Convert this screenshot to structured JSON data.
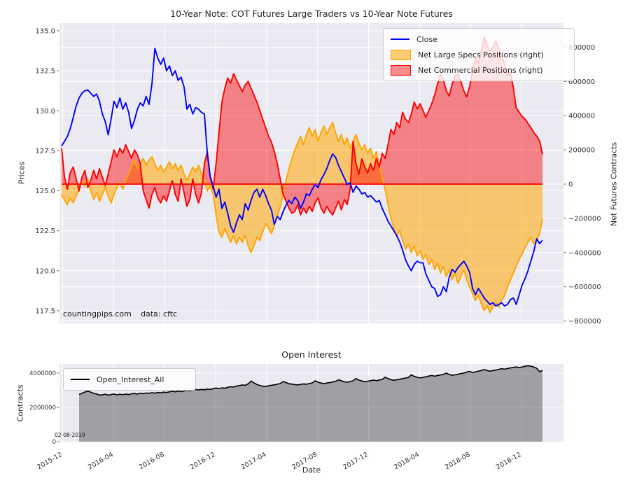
{
  "figure": {
    "background": "#ffffff",
    "plot_background": "#eaeaf2",
    "grid_color": "#ffffff",
    "tick_text_color": "#333333",
    "accent_blue": "#0000ff",
    "accent_orange": "#ffa500",
    "accent_red": "#ff0000",
    "accent_black": "#000000"
  },
  "main_chart": {
    "title": "10-Year Note: COT Futures Large Traders vs 10-Year Note Futures",
    "ylabel_left": "Prices",
    "ylabel_right": "Net Futures Contracts",
    "watermark": "countingpips.com",
    "source_note": "data: cftc",
    "legend": [
      {
        "label": "Close",
        "swatch": "line",
        "color": "#0000ff"
      },
      {
        "label": "Net Large Specs Positions (right)",
        "swatch": "patch",
        "color": "rgba(255,165,0,0.55)",
        "edge": "#ffa500"
      },
      {
        "label": "Net Commercial Positions (right)",
        "swatch": "patch",
        "color": "rgba(255,0,0,0.45)",
        "edge": "#ff0000"
      }
    ],
    "yticks_left": [
      "135.0",
      "132.5",
      "130.0",
      "127.5",
      "125.0",
      "122.5",
      "120.0",
      "117.5"
    ],
    "yticks_right": [
      "800000",
      "600000",
      "400000",
      "200000",
      "0",
      "−200000",
      "−400000",
      "−600000",
      "−800000"
    ]
  },
  "oi_chart": {
    "title": "Open Interest",
    "ylabel": "Contracts",
    "xlabel": "Date",
    "date_note": "02-08-2019",
    "legend": [
      {
        "label": "Open_Interest_All",
        "swatch": "line",
        "color": "#000000"
      }
    ],
    "yticks": [
      "4000000",
      "2000000",
      "0"
    ],
    "xticks": [
      "2015-12",
      "2016-04",
      "2016-08",
      "2016-12",
      "2017-04",
      "2017-08",
      "2017-12",
      "2018-04",
      "2018-08",
      "2018-12"
    ]
  },
  "chart_data": [
    {
      "type": "line",
      "title": "10-Year Note: COT Futures Large Traders vs 10-Year Note Futures",
      "x_unit": "weekly observations, 2015-12 through 2019-02 (last point 02-08-2019)",
      "xlabel": "Date",
      "ylabel_left": "Prices",
      "ylabel_right": "Net Futures Contracts",
      "ylim_left": [
        117.5,
        135.0
      ],
      "ylim_right": [
        -800000,
        800000
      ],
      "grid": true,
      "legend_position": "upper right",
      "series": [
        {
          "name": "Close",
          "axis": "left",
          "style": "line",
          "color": "#0000ff",
          "units": "price",
          "values": [
            127.8,
            128.1,
            128.4,
            128.9,
            129.6,
            130.3,
            130.8,
            131.1,
            131.25,
            131.3,
            131.1,
            130.9,
            131.05,
            130.6,
            129.8,
            129.3,
            128.5,
            129.5,
            130.6,
            130.2,
            130.8,
            130.1,
            130.5,
            129.9,
            128.9,
            129.4,
            130.1,
            130.5,
            130.3,
            130.9,
            130.4,
            131.7,
            133.9,
            133.3,
            132.9,
            133.3,
            132.5,
            132.8,
            132.2,
            132.5,
            131.9,
            132.1,
            131.5,
            130.1,
            130.4,
            129.8,
            130.2,
            130.1,
            129.9,
            129.8,
            127.3,
            125.9,
            125.3,
            124.6,
            125.1,
            123.9,
            124.3,
            123.6,
            122.8,
            122.4,
            123.0,
            123.5,
            123.2,
            124.2,
            123.8,
            124.4,
            124.9,
            125.1,
            124.6,
            125.1,
            124.7,
            124.2,
            123.8,
            122.9,
            123.4,
            123.2,
            123.7,
            124.1,
            124.4,
            124.2,
            124.6,
            124.4,
            123.9,
            124.3,
            124.8,
            124.7,
            125.1,
            125.4,
            125.2,
            125.7,
            126.0,
            126.4,
            126.9,
            127.3,
            127.1,
            126.6,
            126.2,
            125.8,
            125.4,
            125.5,
            124.9,
            125.3,
            125.1,
            124.8,
            124.9,
            124.6,
            124.7,
            124.5,
            124.3,
            124.4,
            123.9,
            123.5,
            123.1,
            122.8,
            122.5,
            122.2,
            121.8,
            121.3,
            120.7,
            120.3,
            120.0,
            120.4,
            120.6,
            120.5,
            120.5,
            119.8,
            119.4,
            119.0,
            118.9,
            118.4,
            118.5,
            119.0,
            118.7,
            119.6,
            120.1,
            119.9,
            120.2,
            120.4,
            120.6,
            120.3,
            119.9,
            118.9,
            118.5,
            118.9,
            118.6,
            118.3,
            118.1,
            117.9,
            118.0,
            117.8,
            117.9,
            118.0,
            117.8,
            117.9,
            118.2,
            118.3,
            117.9,
            118.5,
            119.1,
            119.5,
            120.0,
            120.6,
            121.2,
            122.0,
            121.7,
            121.9
          ]
        },
        {
          "name": "Net Large Specs Positions",
          "axis": "right",
          "style": "area",
          "color": "#ffa500",
          "units": "thousand contracts",
          "values": [
            -60,
            -95,
            -120,
            -80,
            -110,
            -70,
            -30,
            20,
            -15,
            30,
            -40,
            -90,
            -50,
            -100,
            -60,
            -20,
            -70,
            -110,
            -60,
            -20,
            10,
            -30,
            20,
            60,
            100,
            140,
            90,
            120,
            150,
            110,
            140,
            160,
            120,
            80,
            110,
            70,
            100,
            130,
            90,
            120,
            80,
            110,
            60,
            20,
            60,
            100,
            70,
            110,
            60,
            20,
            -40,
            -10,
            -60,
            -180,
            -280,
            -310,
            -260,
            -300,
            -340,
            -300,
            -350,
            -310,
            -340,
            -300,
            -360,
            -400,
            -360,
            -310,
            -330,
            -280,
            -230,
            -260,
            -290,
            -240,
            -190,
            -130,
            -60,
            20,
            90,
            150,
            200,
            240,
            280,
            230,
            290,
            330,
            280,
            320,
            250,
            300,
            340,
            290,
            330,
            360,
            300,
            250,
            290,
            230,
            270,
            210,
            250,
            290,
            240,
            200,
            230,
            180,
            210,
            150,
            190,
            110,
            40,
            -30,
            -120,
            -200,
            -260,
            -310,
            -270,
            -330,
            -380,
            -350,
            -400,
            -360,
            -420,
            -390,
            -440,
            -410,
            -470,
            -440,
            -500,
            -460,
            -520,
            -480,
            -540,
            -500,
            -560,
            -520,
            -580,
            -540,
            -500,
            -560,
            -600,
            -640,
            -680,
            -650,
            -700,
            -740,
            -710,
            -750,
            -720,
            -690,
            -720,
            -680,
            -650,
            -600,
            -560,
            -520,
            -480,
            -440,
            -410,
            -370,
            -340,
            -310,
            -350,
            -330,
            -290,
            -200
          ]
        },
        {
          "name": "Net Commercial Positions",
          "axis": "right",
          "style": "area",
          "color": "#ff0000",
          "units": "thousand contracts",
          "values": [
            210,
            40,
            -30,
            70,
            100,
            30,
            -40,
            40,
            80,
            -20,
            20,
            80,
            30,
            90,
            40,
            -10,
            60,
            130,
            200,
            160,
            210,
            180,
            230,
            190,
            150,
            200,
            170,
            120,
            -40,
            -90,
            -140,
            -60,
            -20,
            -80,
            -110,
            -70,
            -100,
            -40,
            20,
            -60,
            -100,
            30,
            -50,
            -130,
            -90,
            30,
            -60,
            -110,
            -50,
            120,
            190,
            40,
            -30,
            120,
            300,
            480,
            560,
            620,
            590,
            645,
            610,
            575,
            540,
            580,
            600,
            560,
            520,
            480,
            430,
            380,
            330,
            280,
            245,
            190,
            120,
            30,
            -60,
            -100,
            -140,
            -170,
            -160,
            -120,
            -180,
            -140,
            -170,
            -130,
            -160,
            -110,
            -80,
            -140,
            -170,
            -130,
            -160,
            -180,
            -140,
            -100,
            -150,
            -90,
            -120,
            -30,
            250,
            120,
            57,
            147,
            100,
            65,
            120,
            80,
            150,
            100,
            180,
            150,
            230,
            320,
            290,
            360,
            330,
            420,
            380,
            360,
            410,
            480,
            440,
            470,
            430,
            390,
            430,
            470,
            520,
            585,
            645,
            610,
            545,
            515,
            585,
            630,
            645,
            600,
            545,
            510,
            570,
            660,
            739,
            700,
            780,
            857,
            810,
            776,
            800,
            836,
            790,
            747,
            700,
            632,
            657,
            560,
            445,
            420,
            396,
            380,
            355,
            330,
            302,
            280,
            253,
            175
          ]
        }
      ]
    },
    {
      "type": "area",
      "title": "Open Interest",
      "x_unit": "weekly observations, 2016-01 through 2019-02 (last point 02-08-2019)",
      "xlabel": "Date",
      "ylabel": "Contracts",
      "ylim": [
        0,
        4600000
      ],
      "grid": true,
      "legend_position": "upper left",
      "series": [
        {
          "name": "Open_Interest_All",
          "style": "area-line",
          "color": "#000000",
          "units": "million contracts",
          "values": [
            2.76,
            2.83,
            2.9,
            2.95,
            2.89,
            2.82,
            2.78,
            2.72,
            2.74,
            2.77,
            2.72,
            2.75,
            2.78,
            2.73,
            2.77,
            2.74,
            2.78,
            2.75,
            2.79,
            2.81,
            2.78,
            2.82,
            2.8,
            2.84,
            2.82,
            2.86,
            2.83,
            2.87,
            2.85,
            2.89,
            2.87,
            2.91,
            2.94,
            2.91,
            2.95,
            2.92,
            2.96,
            2.99,
            2.97,
            3.01,
            3.04,
            3.02,
            3.05,
            3.03,
            3.07,
            3.05,
            3.09,
            3.13,
            3.1,
            3.14,
            3.12,
            3.17,
            3.21,
            3.19,
            3.24,
            3.27,
            3.31,
            3.29,
            3.37,
            3.54,
            3.43,
            3.34,
            3.28,
            3.24,
            3.22,
            3.26,
            3.29,
            3.32,
            3.35,
            3.39,
            3.51,
            3.45,
            3.38,
            3.36,
            3.33,
            3.31,
            3.34,
            3.37,
            3.35,
            3.39,
            3.43,
            3.55,
            3.47,
            3.42,
            3.39,
            3.42,
            3.45,
            3.48,
            3.52,
            3.61,
            3.55,
            3.5,
            3.47,
            3.51,
            3.55,
            3.68,
            3.59,
            3.54,
            3.5,
            3.53,
            3.56,
            3.59,
            3.56,
            3.6,
            3.63,
            3.76,
            3.68,
            3.62,
            3.58,
            3.61,
            3.64,
            3.68,
            3.71,
            3.75,
            3.9,
            3.81,
            3.76,
            3.72,
            3.75,
            3.79,
            3.83,
            3.86,
            3.82,
            3.86,
            3.89,
            3.93,
            4.0,
            3.92,
            3.87,
            3.9,
            3.94,
            3.97,
            4.0,
            4.06,
            4.1,
            4.03,
            4.07,
            4.11,
            4.15,
            4.21,
            4.15,
            4.11,
            4.15,
            4.18,
            4.22,
            4.26,
            4.23,
            4.27,
            4.3,
            4.33,
            4.36,
            4.32,
            4.36,
            4.4,
            4.43,
            4.4,
            4.36,
            4.28,
            4.08,
            4.15
          ]
        }
      ]
    }
  ]
}
